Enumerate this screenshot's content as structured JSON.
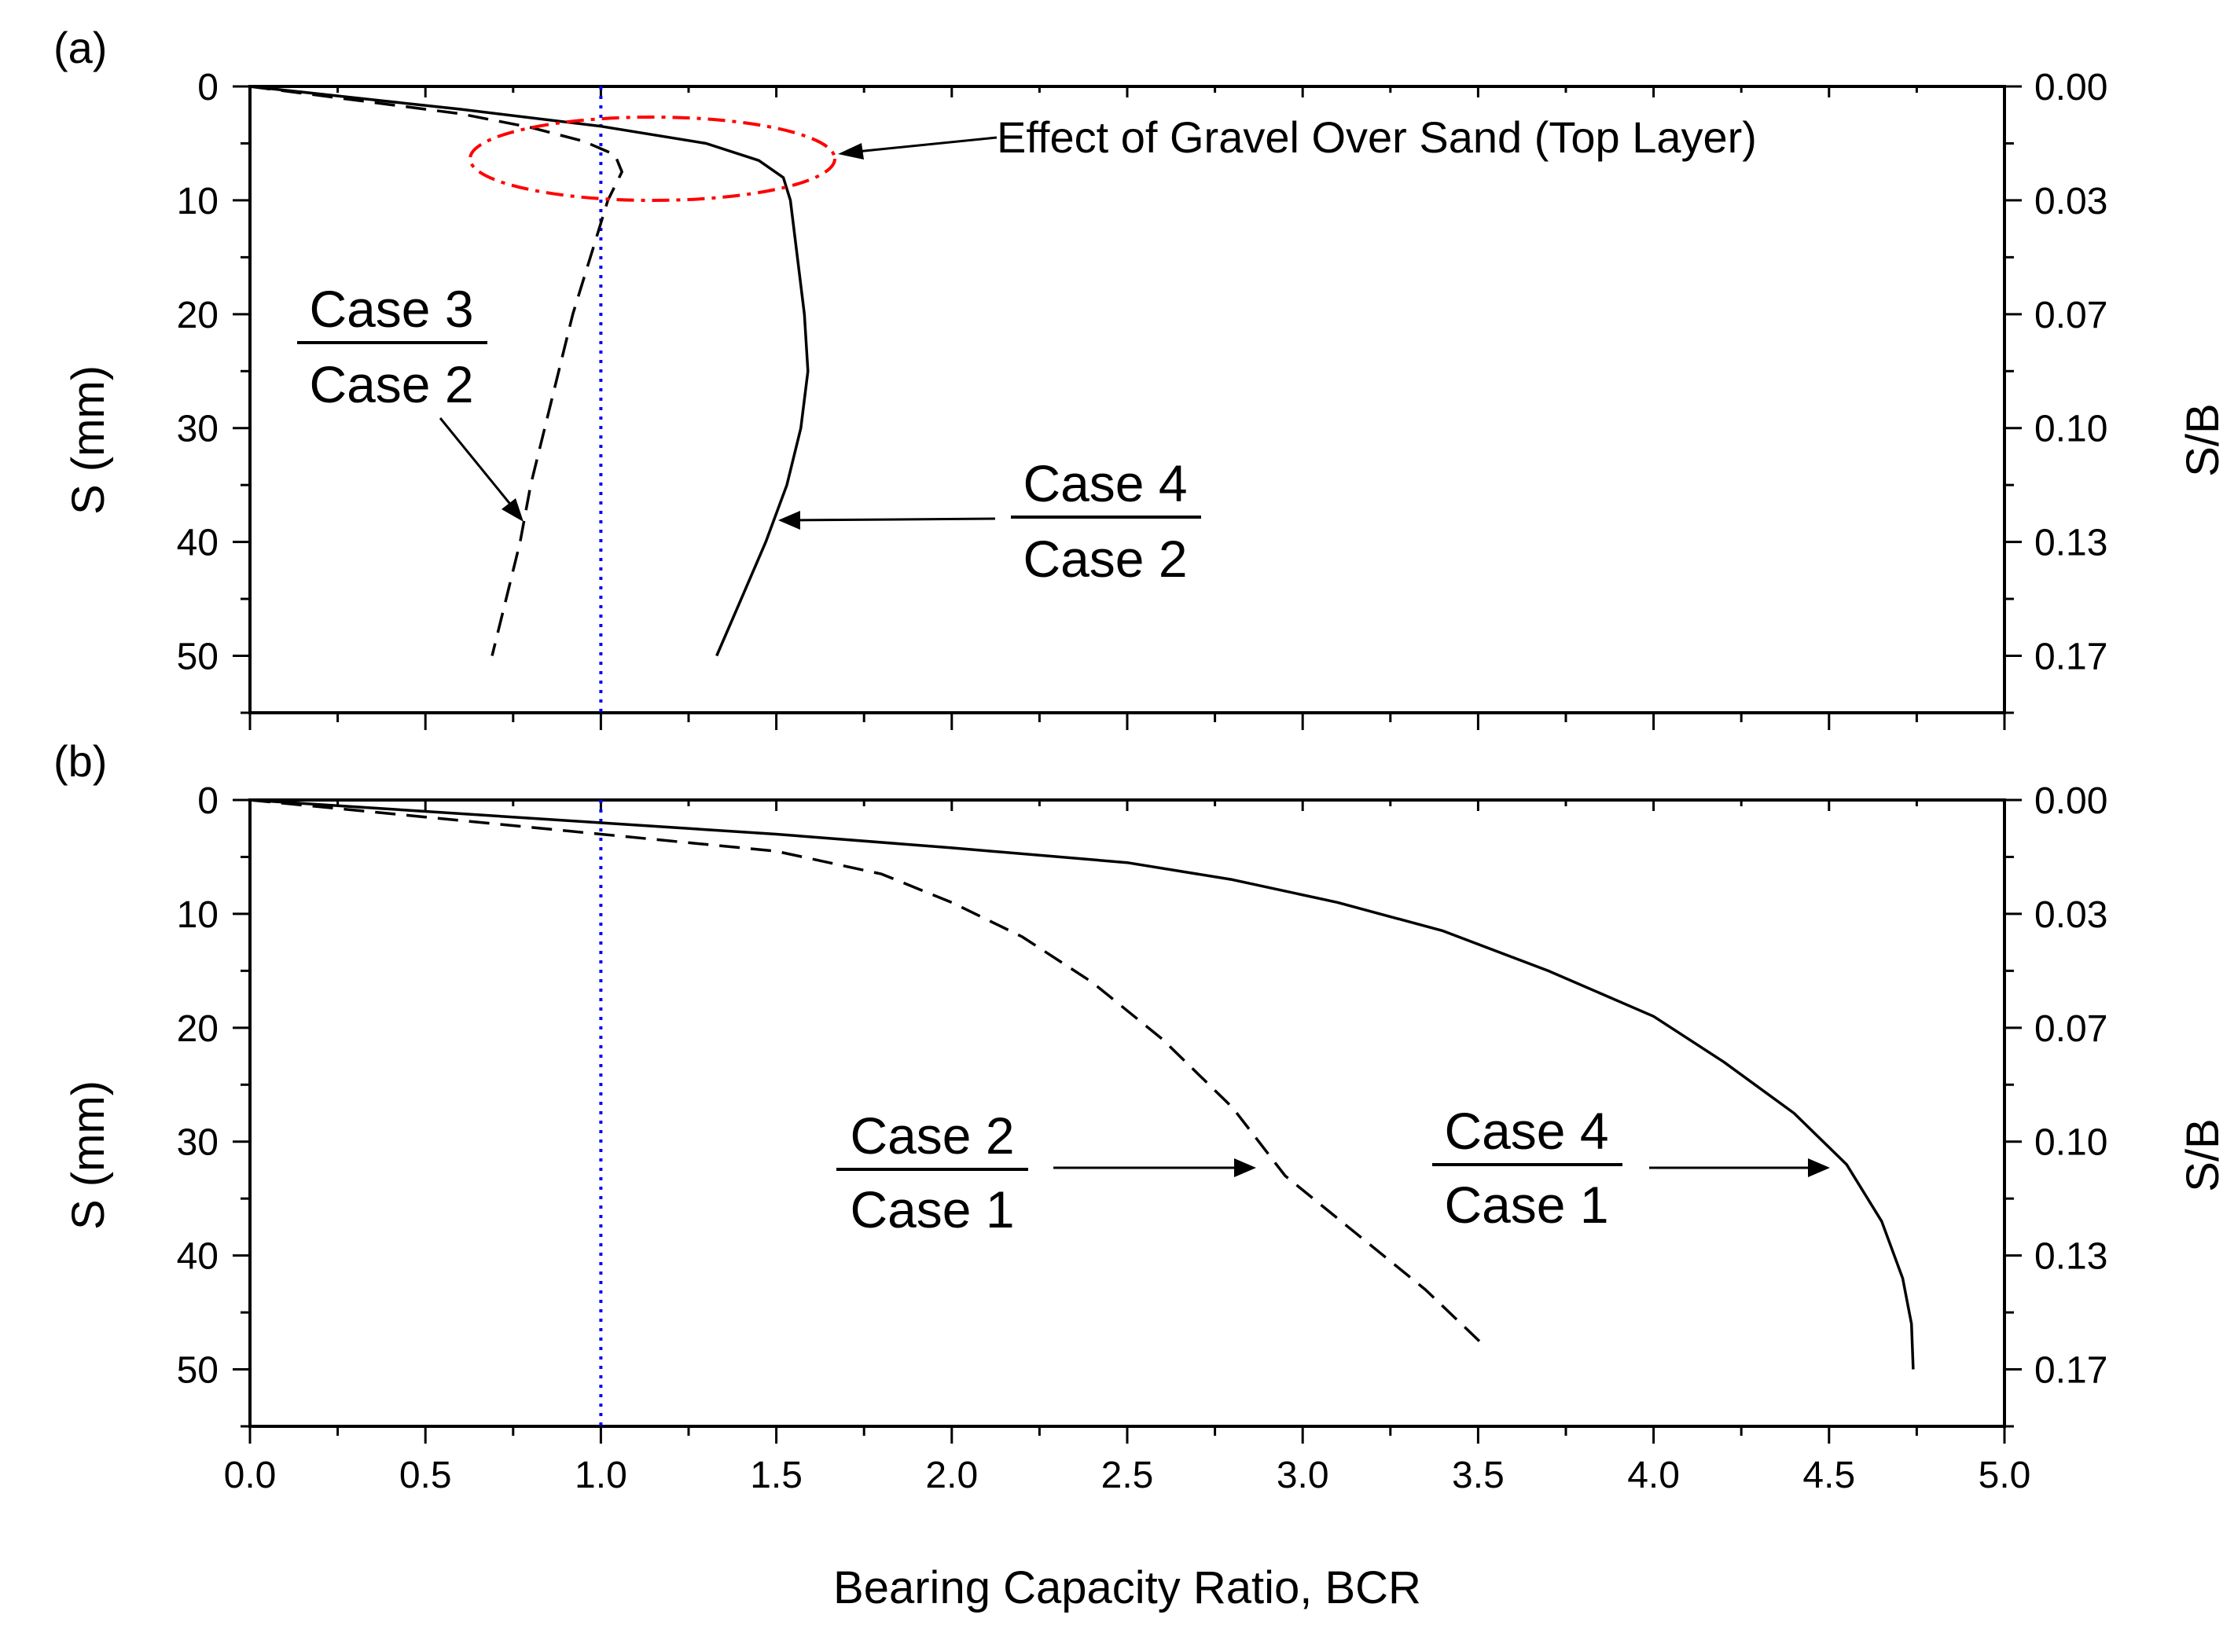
{
  "colors": {
    "axis": "#000000",
    "curve": "#000000",
    "reference_line": "#0000ff",
    "highlight_ellipse": "#ff0000"
  },
  "chart_data": [
    {
      "type": "line",
      "panel_label": "(a)",
      "xlabel": "Bearing Capacity Ratio, BCR",
      "ylabel": "S (mm)",
      "y2label": "S/B",
      "xlim": [
        0.0,
        5.0
      ],
      "ylim": [
        0,
        55
      ],
      "y_inverted": true,
      "y_ticks": [
        "0",
        "10",
        "20",
        "30",
        "40",
        "50"
      ],
      "y2_ticks": [
        "0.00",
        "0.03",
        "0.07",
        "0.10",
        "0.13",
        "0.17"
      ],
      "reference_line": {
        "x": 1.0,
        "style": "dotted"
      },
      "series": [
        {
          "name": "Case 3 / Case 2",
          "numerator": "Case 3",
          "denominator": "Case 2",
          "style": "dashed",
          "points": [
            [
              0.0,
              0
            ],
            [
              0.3,
              1.2
            ],
            [
              0.6,
              2.4
            ],
            [
              0.8,
              3.6
            ],
            [
              0.95,
              4.8
            ],
            [
              1.04,
              6.0
            ],
            [
              1.06,
              7.5
            ],
            [
              1.02,
              10.0
            ],
            [
              0.97,
              15.0
            ],
            [
              0.92,
              20.0
            ],
            [
              0.88,
              25.0
            ],
            [
              0.84,
              30.0
            ],
            [
              0.8,
              35.0
            ],
            [
              0.77,
              40.0
            ],
            [
              0.73,
              45.0
            ],
            [
              0.69,
              50.0
            ]
          ]
        },
        {
          "name": "Case 4 / Case 2",
          "numerator": "Case 4",
          "denominator": "Case 2",
          "style": "solid",
          "points": [
            [
              0.0,
              0
            ],
            [
              0.3,
              1.0
            ],
            [
              0.6,
              2.0
            ],
            [
              1.0,
              3.5
            ],
            [
              1.3,
              5.0
            ],
            [
              1.45,
              6.5
            ],
            [
              1.52,
              8.0
            ],
            [
              1.54,
              10.0
            ],
            [
              1.56,
              15.0
            ],
            [
              1.58,
              20.0
            ],
            [
              1.59,
              25.0
            ],
            [
              1.57,
              30.0
            ],
            [
              1.53,
              35.0
            ],
            [
              1.47,
              40.0
            ],
            [
              1.4,
              45.0
            ],
            [
              1.33,
              50.0
            ]
          ]
        }
      ],
      "annotations": [
        {
          "text": "Effect of Gravel Over Sand (Top Layer)",
          "target": "highlight-ellipse"
        }
      ]
    },
    {
      "type": "line",
      "panel_label": "(b)",
      "xlabel": "Bearing Capacity Ratio, BCR",
      "ylabel": "S (mm)",
      "y2label": "S/B",
      "xlim": [
        0.0,
        5.0
      ],
      "ylim": [
        0,
        55
      ],
      "y_inverted": true,
      "x_ticks": [
        "0.0",
        "0.5",
        "1.0",
        "1.5",
        "2.0",
        "2.5",
        "3.0",
        "3.5",
        "4.0",
        "4.5",
        "5.0"
      ],
      "y_ticks": [
        "0",
        "10",
        "20",
        "30",
        "40",
        "50"
      ],
      "y2_ticks": [
        "0.00",
        "0.03",
        "0.07",
        "0.10",
        "0.13",
        "0.17"
      ],
      "reference_line": {
        "x": 1.0,
        "style": "dotted"
      },
      "series": [
        {
          "name": "Case 2 / Case 1",
          "numerator": "Case 2",
          "denominator": "Case 1",
          "style": "dashed",
          "points": [
            [
              0.0,
              0
            ],
            [
              0.5,
              1.5
            ],
            [
              1.0,
              3.0
            ],
            [
              1.5,
              4.5
            ],
            [
              1.8,
              6.5
            ],
            [
              2.0,
              9.0
            ],
            [
              2.2,
              12.0
            ],
            [
              2.4,
              16.0
            ],
            [
              2.6,
              21.0
            ],
            [
              2.8,
              27.0
            ],
            [
              2.95,
              33.0
            ],
            [
              3.15,
              38.0
            ],
            [
              3.35,
              43.0
            ],
            [
              3.52,
              48.0
            ]
          ]
        },
        {
          "name": "Case 4 / Case 1",
          "numerator": "Case 4",
          "denominator": "Case 1",
          "style": "solid",
          "points": [
            [
              0.0,
              0
            ],
            [
              0.5,
              1.0
            ],
            [
              1.0,
              2.0
            ],
            [
              1.5,
              3.0
            ],
            [
              2.0,
              4.2
            ],
            [
              2.5,
              5.5
            ],
            [
              2.8,
              7.0
            ],
            [
              3.1,
              9.0
            ],
            [
              3.4,
              11.5
            ],
            [
              3.7,
              15.0
            ],
            [
              4.0,
              19.0
            ],
            [
              4.2,
              23.0
            ],
            [
              4.4,
              27.5
            ],
            [
              4.55,
              32.0
            ],
            [
              4.65,
              37.0
            ],
            [
              4.71,
              42.0
            ],
            [
              4.735,
              46.0
            ],
            [
              4.74,
              50.0
            ]
          ]
        }
      ],
      "annotations": []
    }
  ]
}
